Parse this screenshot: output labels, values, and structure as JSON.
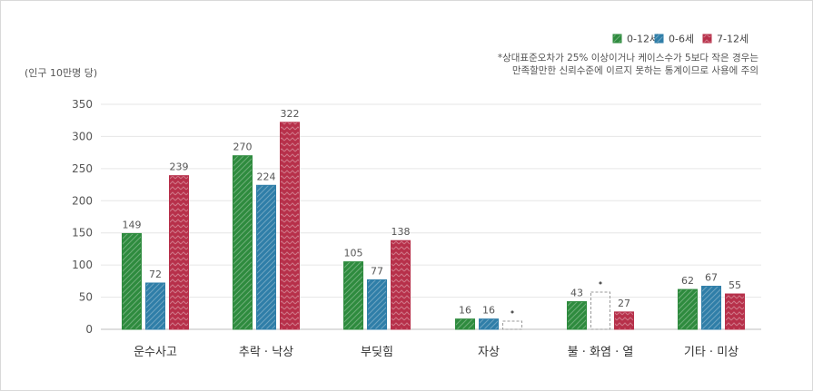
{
  "chart_data": {
    "type": "bar",
    "unit_label": "(인구 10만명 당)",
    "note_lines": [
      "*상대표준오차가 25% 이상이거나 케이스수가 5보다 작은 경우는",
      "만족할만한 신뢰수준에 이르지 못하는 통계이므로 사용에 주의"
    ],
    "categories": [
      "운수사고",
      "추락 · 낙상",
      "부딪힘",
      "자상",
      "불 · 화염 · 열",
      "기타 · 미상"
    ],
    "ylim": [
      0,
      350
    ],
    "yticks": [
      0,
      50,
      100,
      150,
      200,
      250,
      300,
      350
    ],
    "grid": true,
    "legend_position": "top-right",
    "series": [
      {
        "name": "0-12세",
        "color": "#2e8b3e",
        "values": [
          149,
          270,
          105,
          16,
          43,
          62
        ],
        "labels": [
          "149",
          "270",
          "105",
          "16",
          "43",
          "62"
        ],
        "unreliable": [
          false,
          false,
          false,
          false,
          false,
          false
        ]
      },
      {
        "name": "0-6세",
        "color": "#2f7ea8",
        "values": [
          72,
          224,
          77,
          16,
          null,
          67
        ],
        "labels": [
          "72",
          "224",
          "77",
          "16",
          "•",
          "67"
        ],
        "unreliable": [
          false,
          false,
          false,
          false,
          true,
          false
        ]
      },
      {
        "name": "7-12세",
        "color": "#b7304a",
        "values": [
          239,
          322,
          138,
          null,
          27,
          55
        ],
        "labels": [
          "239",
          "322",
          "138",
          "•",
          "27",
          "55"
        ],
        "unreliable": [
          false,
          false,
          false,
          true,
          false,
          false
        ]
      }
    ]
  }
}
